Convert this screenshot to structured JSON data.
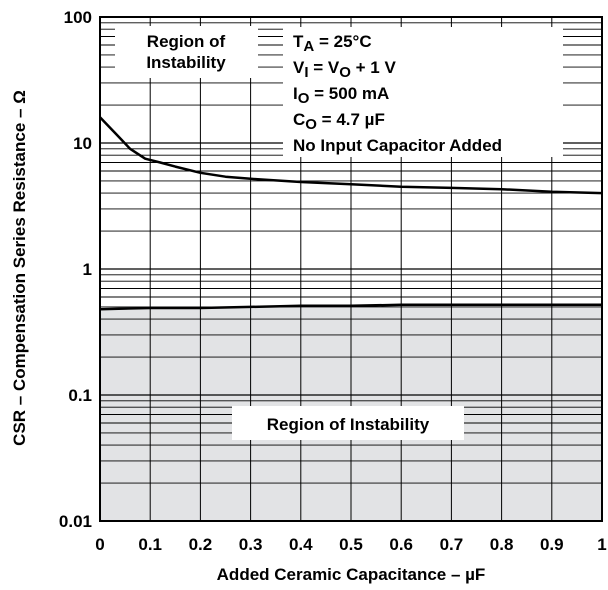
{
  "chart_data": {
    "type": "line",
    "xlabel": "Added Ceramic Capacitance – µF",
    "ylabel": "CSR – Compensation Series Resistance – Ω",
    "xlim": [
      0,
      1
    ],
    "ylim": [
      0.01,
      100
    ],
    "y_scale": "log",
    "grid": true,
    "x_ticks": [
      {
        "value": 0,
        "label": "0"
      },
      {
        "value": 0.1,
        "label": "0.1"
      },
      {
        "value": 0.2,
        "label": "0.2"
      },
      {
        "value": 0.3,
        "label": "0.3"
      },
      {
        "value": 0.4,
        "label": "0.4"
      },
      {
        "value": 0.5,
        "label": "0.5"
      },
      {
        "value": 0.6,
        "label": "0.6"
      },
      {
        "value": 0.7,
        "label": "0.7"
      },
      {
        "value": 0.8,
        "label": "0.8"
      },
      {
        "value": 0.9,
        "label": "0.9"
      },
      {
        "value": 1,
        "label": "1"
      }
    ],
    "y_ticks": [
      {
        "value": 0.01,
        "label": "0.01"
      },
      {
        "value": 0.1,
        "label": "0.1"
      },
      {
        "value": 1,
        "label": "1"
      },
      {
        "value": 10,
        "label": "10"
      },
      {
        "value": 100,
        "label": "100"
      }
    ],
    "series": [
      {
        "color": "#000000",
        "x": [
          0,
          0.03,
          0.06,
          0.09,
          0.12,
          0.15,
          0.2,
          0.25,
          0.3,
          0.4,
          0.5,
          0.6,
          0.7,
          0.8,
          0.9,
          1.0
        ],
        "y": [
          16,
          12,
          9,
          7.5,
          7,
          6.5,
          5.8,
          5.4,
          5.2,
          4.9,
          4.7,
          4.5,
          4.4,
          4.3,
          4.1,
          4.0
        ]
      },
      {
        "color": "#000000",
        "x": [
          0,
          0.1,
          0.2,
          0.3,
          0.4,
          0.5,
          0.6,
          0.7,
          0.8,
          0.9,
          1.0
        ],
        "y": [
          0.48,
          0.49,
          0.49,
          0.5,
          0.51,
          0.51,
          0.52,
          0.52,
          0.52,
          0.52,
          0.52
        ]
      }
    ],
    "annotations": {
      "region_upper": [
        "Region of",
        "Instability"
      ],
      "region_lower": "Region of Instability",
      "conditions": [
        {
          "main": "T",
          "sub": "A",
          "rest": " = 25°C"
        },
        {
          "main": "V",
          "sub": "I",
          "rest": " = V",
          "sub2": "O",
          "rest2": " + 1 V"
        },
        {
          "main": "I",
          "sub": "O",
          "rest": " = 500 mA"
        },
        {
          "main": "C",
          "sub": "O",
          "rest": " = 4.7 µF"
        },
        {
          "main": "No Input Capacitor Added"
        }
      ]
    },
    "colors": {
      "instability_fill": "#e2e3e5",
      "line": "#000000",
      "grid": "#000000"
    }
  }
}
